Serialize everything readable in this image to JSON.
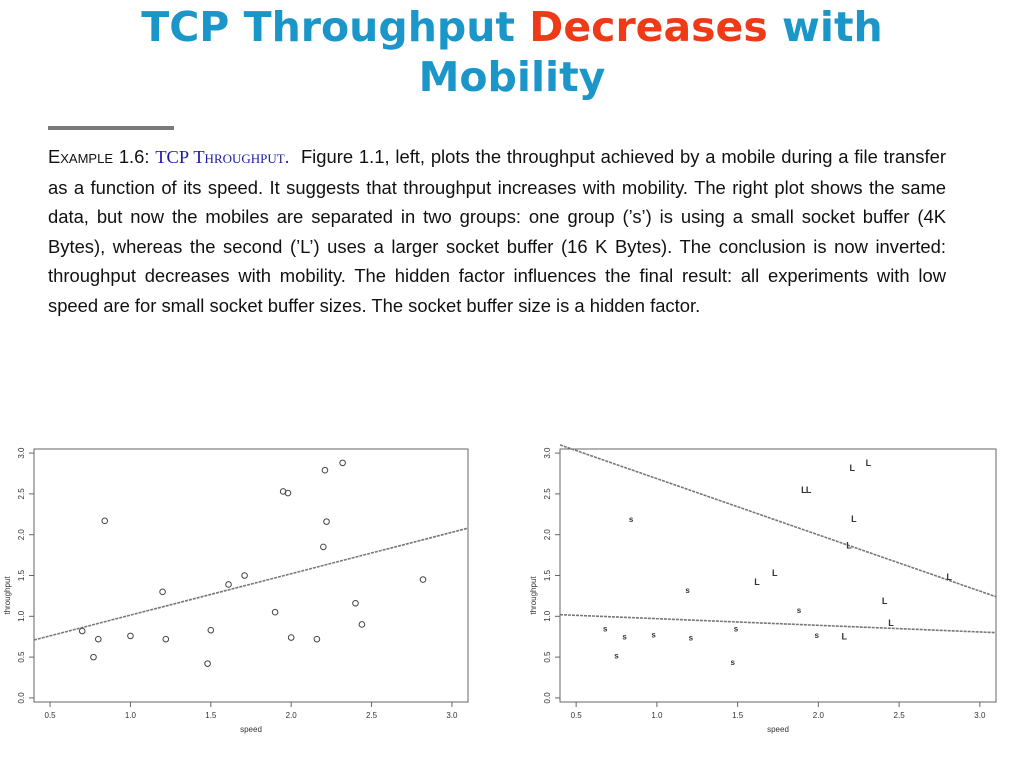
{
  "slide": {
    "title_part1": "TCP Throughput ",
    "title_highlight": "Decreases",
    "title_part2": " with",
    "title_line2": "Mobility",
    "accent_color": "#1b96c9",
    "highlight_color": "#ee3a17"
  },
  "example": {
    "label": "Example 1.6:",
    "topic": "TCP Throughput.",
    "body": "Figure 1.1, left, plots the throughput achieved by a mobile during a file transfer as a function of its speed. It suggests that throughput increases with mobility. The right plot shows the same data, but now the mobiles are separated in two groups: one group (’s’) is using a small socket buffer (4K Bytes), whereas the second (’L’) uses a larger socket buffer (16 K Bytes). The conclusion is now inverted: throughput decreases with mobility. The hidden factor influences the final result: all experiments with low speed are for small socket buffer sizes. The socket buffer size is a hidden factor."
  },
  "chart_data": [
    {
      "type": "scatter",
      "xlabel": "speed",
      "ylabel": "throughput",
      "xlim": [
        0.4,
        3.1
      ],
      "ylim": [
        -0.05,
        3.05
      ],
      "xticks": [
        "0.5",
        "1.0",
        "1.5",
        "2.0",
        "2.5",
        "3.0"
      ],
      "yticks": [
        "0.0",
        "0.5",
        "1.0",
        "1.5",
        "2.0",
        "2.5",
        "3.0"
      ],
      "marker": "o",
      "points": [
        [
          0.7,
          0.82
        ],
        [
          0.77,
          0.5
        ],
        [
          0.8,
          0.72
        ],
        [
          0.84,
          2.17
        ],
        [
          1.0,
          0.76
        ],
        [
          1.2,
          1.3
        ],
        [
          1.22,
          0.72
        ],
        [
          1.48,
          0.42
        ],
        [
          1.5,
          0.83
        ],
        [
          1.61,
          1.39
        ],
        [
          1.71,
          1.5
        ],
        [
          1.9,
          1.05
        ],
        [
          1.95,
          2.53
        ],
        [
          1.98,
          2.51
        ],
        [
          2.0,
          0.74
        ],
        [
          2.16,
          0.72
        ],
        [
          2.2,
          1.85
        ],
        [
          2.21,
          2.79
        ],
        [
          2.22,
          2.16
        ],
        [
          2.32,
          2.88
        ],
        [
          2.4,
          1.16
        ],
        [
          2.44,
          0.9
        ],
        [
          2.82,
          1.45
        ]
      ],
      "fit_lines": [
        {
          "x": [
            0.4,
            3.1
          ],
          "y": [
            0.71,
            2.08
          ]
        }
      ]
    },
    {
      "type": "scatter",
      "xlabel": "speed",
      "ylabel": "throughput",
      "xlim": [
        0.4,
        3.1
      ],
      "ylim": [
        -0.05,
        3.05
      ],
      "xticks": [
        "0.5",
        "1.0",
        "1.5",
        "2.0",
        "2.5",
        "3.0"
      ],
      "yticks": [
        "0.0",
        "0.5",
        "1.0",
        "1.5",
        "2.0",
        "2.5",
        "3.0"
      ],
      "series": [
        {
          "marker": "s",
          "points": [
            [
              0.68,
              0.85
            ],
            [
              0.75,
              0.52
            ],
            [
              0.8,
              0.75
            ],
            [
              0.84,
              2.19
            ],
            [
              0.98,
              0.78
            ],
            [
              1.19,
              1.32
            ],
            [
              1.21,
              0.74
            ],
            [
              1.47,
              0.44
            ],
            [
              1.49,
              0.85
            ],
            [
              1.88,
              1.08
            ],
            [
              1.99,
              0.77
            ]
          ]
        },
        {
          "marker": "L",
          "points": [
            [
              1.62,
              1.42
            ],
            [
              1.73,
              1.53
            ],
            [
              1.91,
              2.55
            ],
            [
              1.94,
              2.55
            ],
            [
              2.16,
              0.75
            ],
            [
              2.19,
              1.87
            ],
            [
              2.21,
              2.82
            ],
            [
              2.22,
              2.19
            ],
            [
              2.31,
              2.88
            ],
            [
              2.41,
              1.19
            ],
            [
              2.45,
              0.92
            ],
            [
              2.81,
              1.48
            ]
          ]
        }
      ],
      "fit_lines": [
        {
          "x": [
            0.4,
            3.1
          ],
          "y": [
            3.1,
            1.24
          ]
        },
        {
          "x": [
            0.4,
            3.1
          ],
          "y": [
            1.02,
            0.8
          ]
        }
      ]
    }
  ]
}
